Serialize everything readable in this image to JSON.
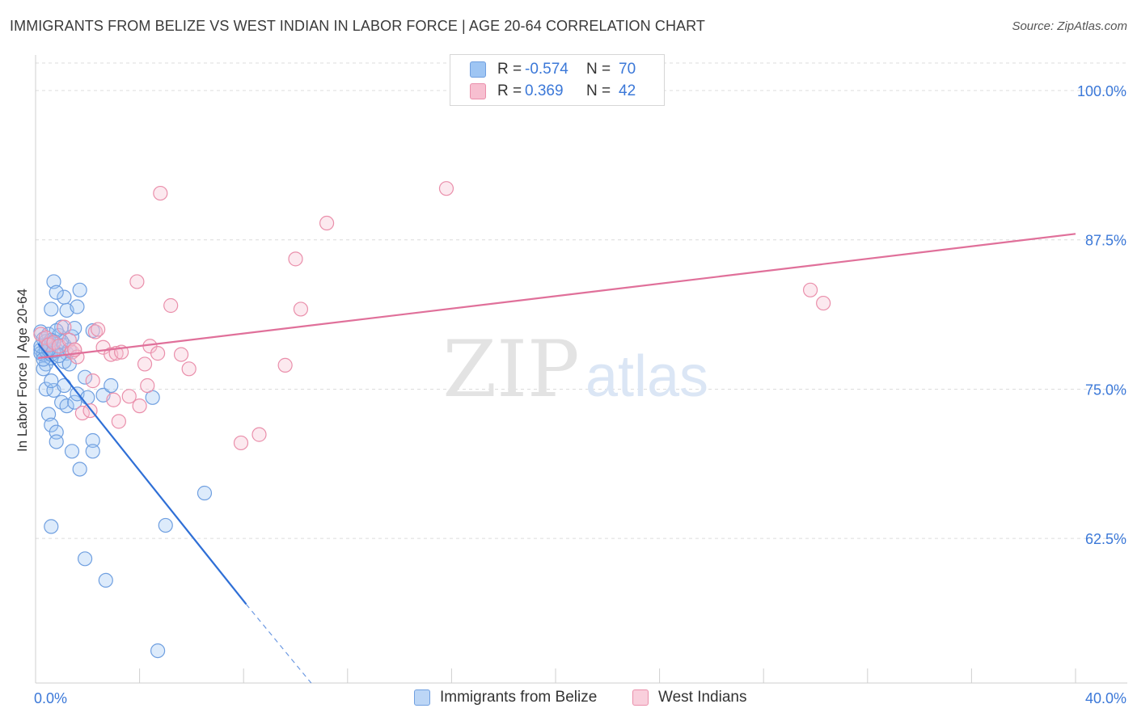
{
  "title": "IMMIGRANTS FROM BELIZE VS WEST INDIAN IN LABOR FORCE | AGE 20-64 CORRELATION CHART",
  "source": "Source: ZipAtlas.com",
  "watermark": {
    "zip": "ZIP",
    "atlas": "atlas"
  },
  "legend_top": [
    {
      "r_label": "R =",
      "r_value": "-0.574",
      "n_label": "N =",
      "n_value": "70",
      "color": "#9ec5f3",
      "border": "#6f9fe0"
    },
    {
      "r_label": "R =",
      "r_value": "0.369",
      "n_label": "N =",
      "n_value": "42",
      "color": "#f7bfd0",
      "border": "#ea8fab"
    }
  ],
  "legend_bottom": [
    {
      "label": "Immigrants from Belize",
      "color": "#bcd6f6",
      "border": "#6f9fe0"
    },
    {
      "label": "West Indians",
      "color": "#f9cfdc",
      "border": "#ea8fab"
    }
  ],
  "chart_data": {
    "type": "scatter",
    "title": "IMMIGRANTS FROM BELIZE VS WEST INDIAN IN LABOR FORCE | AGE 20-64 CORRELATION CHART",
    "xlabel": "",
    "ylabel": "In Labor Force | Age 20-64",
    "xlim": [
      0,
      40
    ],
    "ylim": [
      50.4,
      102.3
    ],
    "x_tick_labels": [
      {
        "value": 0,
        "label": "0.0%"
      },
      {
        "value": 40,
        "label": "40.0%"
      }
    ],
    "y_tick_labels": [
      {
        "value": 100,
        "label": "100.0%"
      },
      {
        "value": 87.5,
        "label": "87.5%"
      },
      {
        "value": 75,
        "label": "75.0%"
      },
      {
        "value": 62.5,
        "label": "62.5%"
      }
    ],
    "grid": true,
    "series": [
      {
        "name": "Immigrants from Belize",
        "color": "#6f9fe0",
        "fill": "rgba(158,197,243,0.35)",
        "trend": {
          "x0": 0.1,
          "y0": 78.8,
          "x1": 8.1,
          "y1": 57.0,
          "dash_x1": 10.6,
          "dash_y1": 50.4,
          "color": "#2f6fd6"
        },
        "points": [
          [
            0.2,
            79.8
          ],
          [
            0.3,
            79.2
          ],
          [
            0.2,
            78.3
          ],
          [
            0.3,
            77.9
          ],
          [
            0.4,
            78.6
          ],
          [
            0.5,
            78.1
          ],
          [
            0.4,
            77.1
          ],
          [
            0.6,
            78.5
          ],
          [
            0.5,
            79.6
          ],
          [
            0.7,
            79.0
          ],
          [
            0.8,
            78.3
          ],
          [
            0.6,
            77.6
          ],
          [
            0.9,
            79.5
          ],
          [
            1.0,
            80.2
          ],
          [
            1.1,
            78.7
          ],
          [
            1.2,
            78.0
          ],
          [
            1.1,
            77.3
          ],
          [
            1.4,
            79.4
          ],
          [
            1.3,
            77.1
          ],
          [
            0.7,
            84.0
          ],
          [
            1.1,
            82.7
          ],
          [
            0.8,
            83.1
          ],
          [
            1.7,
            83.3
          ],
          [
            0.6,
            81.7
          ],
          [
            1.2,
            81.6
          ],
          [
            1.6,
            81.9
          ],
          [
            1.5,
            80.1
          ],
          [
            2.2,
            79.9
          ],
          [
            0.3,
            76.7
          ],
          [
            0.4,
            75.0
          ],
          [
            0.7,
            74.9
          ],
          [
            0.6,
            75.7
          ],
          [
            1.1,
            75.3
          ],
          [
            1.0,
            73.9
          ],
          [
            1.2,
            73.6
          ],
          [
            1.5,
            73.9
          ],
          [
            1.6,
            74.6
          ],
          [
            2.0,
            74.3
          ],
          [
            2.6,
            74.5
          ],
          [
            2.9,
            75.3
          ],
          [
            0.5,
            72.9
          ],
          [
            0.6,
            72.0
          ],
          [
            0.8,
            71.4
          ],
          [
            0.8,
            70.6
          ],
          [
            1.4,
            69.8
          ],
          [
            2.2,
            70.7
          ],
          [
            2.2,
            69.8
          ],
          [
            1.7,
            68.3
          ],
          [
            4.5,
            74.3
          ],
          [
            6.5,
            66.3
          ],
          [
            0.6,
            63.5
          ],
          [
            5.0,
            63.6
          ],
          [
            1.9,
            60.8
          ],
          [
            2.7,
            59.0
          ],
          [
            4.7,
            53.1
          ],
          [
            0.2,
            78.0
          ],
          [
            0.3,
            77.5
          ],
          [
            0.4,
            79.0
          ],
          [
            0.5,
            78.8
          ],
          [
            0.6,
            77.9
          ],
          [
            0.7,
            78.2
          ],
          [
            0.9,
            77.8
          ],
          [
            1.0,
            79.0
          ],
          [
            0.8,
            79.9
          ],
          [
            1.3,
            78.3
          ],
          [
            0.4,
            78.2
          ],
          [
            0.5,
            78.3
          ],
          [
            0.2,
            78.6
          ],
          [
            0.6,
            79.1
          ],
          [
            1.9,
            76.0
          ]
        ]
      },
      {
        "name": "West Indians",
        "color": "#ea8fab",
        "fill": "rgba(247,191,208,0.35)",
        "trend": {
          "x0": 0.1,
          "y0": 77.6,
          "x1": 40.0,
          "y1": 88.0,
          "color": "#e0709a"
        },
        "points": [
          [
            0.2,
            79.6
          ],
          [
            0.4,
            79.3
          ],
          [
            0.5,
            78.7
          ],
          [
            0.7,
            78.9
          ],
          [
            0.9,
            78.6
          ],
          [
            1.1,
            80.2
          ],
          [
            1.3,
            79.1
          ],
          [
            1.4,
            78.1
          ],
          [
            1.5,
            78.3
          ],
          [
            1.6,
            77.7
          ],
          [
            2.3,
            79.8
          ],
          [
            2.4,
            80.0
          ],
          [
            2.6,
            78.5
          ],
          [
            2.9,
            77.9
          ],
          [
            3.1,
            78.0
          ],
          [
            3.3,
            78.1
          ],
          [
            4.4,
            78.6
          ],
          [
            4.7,
            78.0
          ],
          [
            4.2,
            77.1
          ],
          [
            5.6,
            77.9
          ],
          [
            5.9,
            76.7
          ],
          [
            2.2,
            75.7
          ],
          [
            3.6,
            74.4
          ],
          [
            4.3,
            75.3
          ],
          [
            4.0,
            73.6
          ],
          [
            3.0,
            74.1
          ],
          [
            1.8,
            73.0
          ],
          [
            2.1,
            73.2
          ],
          [
            3.2,
            72.3
          ],
          [
            1.5,
            78.3
          ],
          [
            3.9,
            84.0
          ],
          [
            5.2,
            82.0
          ],
          [
            4.8,
            91.4
          ],
          [
            9.6,
            77.0
          ],
          [
            10.0,
            85.9
          ],
          [
            10.2,
            81.7
          ],
          [
            11.2,
            88.9
          ],
          [
            15.8,
            91.8
          ],
          [
            29.8,
            83.3
          ],
          [
            30.3,
            82.2
          ],
          [
            8.6,
            71.2
          ],
          [
            7.9,
            70.5
          ]
        ]
      }
    ]
  }
}
